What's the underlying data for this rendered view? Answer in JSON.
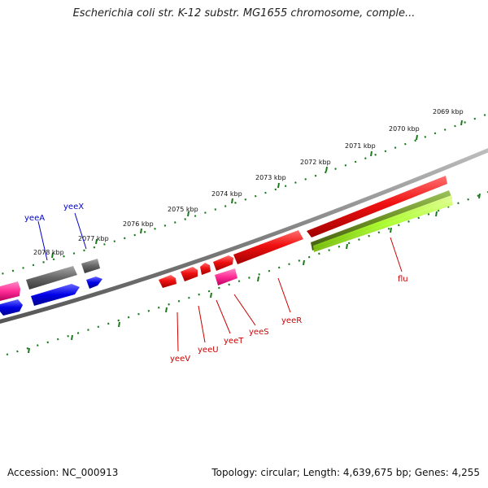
{
  "title": "Escherichia coli str. K-12 substr. MG1655 chromosome, comple...",
  "footer": {
    "accession": "Accession: NC_000913",
    "topology": "Topology: circular; Length: 4,639,675 bp; Genes: 4,255"
  },
  "colors": {
    "backbone": "#888888",
    "ruler": "#1b7a1b",
    "fwd_gene": "#e50000",
    "pink_gene": "#ff3399",
    "blue_gene": "#0000e0",
    "grey_gene": "#666666",
    "olive_gene": "#6b8e23",
    "lime_gene": "#adff2f",
    "label_red": "#cc0000",
    "label_blue": "#0000cc"
  },
  "ruler_labels": [
    "2069 kbp",
    "2070 kbp",
    "2071 kbp",
    "2072 kbp",
    "2073 kbp",
    "2074 kbp",
    "2075 kbp",
    "2076 kbp",
    "2077 kbp",
    "2078 kbp"
  ],
  "gene_labels": [
    {
      "name": "yeeA",
      "color": "#0000cc"
    },
    {
      "name": "yeeX",
      "color": "#0000cc"
    },
    {
      "name": "flu",
      "color": "#cc0000"
    },
    {
      "name": "yeeR",
      "color": "#cc0000"
    },
    {
      "name": "yeeS",
      "color": "#cc0000"
    },
    {
      "name": "yeeT",
      "color": "#cc0000"
    },
    {
      "name": "yeeU",
      "color": "#cc0000"
    },
    {
      "name": "yeeV",
      "color": "#cc0000"
    }
  ]
}
